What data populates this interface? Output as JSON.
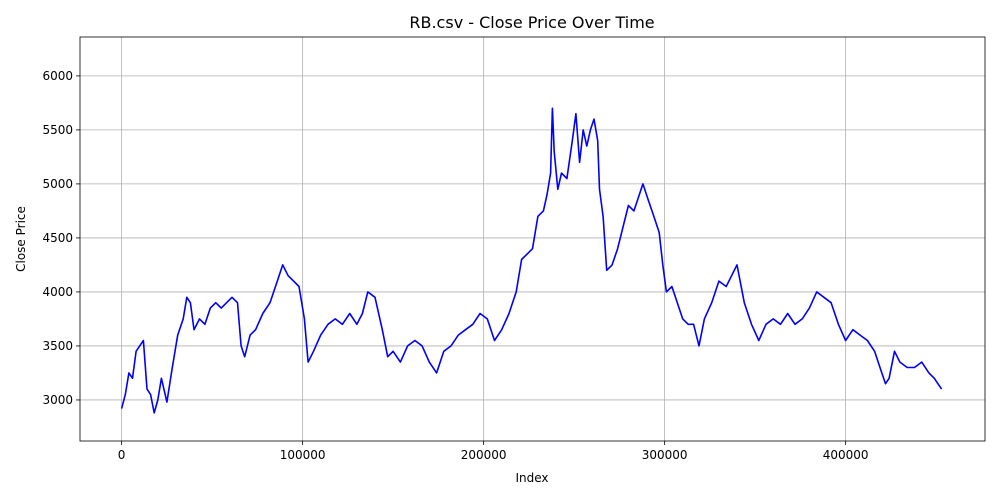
{
  "chart_data": {
    "type": "line",
    "title": "RB.csv - Close Price Over Time",
    "xlabel": "Index",
    "ylabel": "Close Price",
    "xlim": [
      -23000,
      477000
    ],
    "ylim": [
      2620,
      6360
    ],
    "xticks": [
      0,
      100000,
      200000,
      300000,
      400000
    ],
    "xtick_labels": [
      "0",
      "100000",
      "200000",
      "300000",
      "400000"
    ],
    "yticks": [
      3000,
      3500,
      4000,
      4500,
      5000,
      5500,
      6000
    ],
    "ytick_labels": [
      "3000",
      "3500",
      "4000",
      "4500",
      "5000",
      "5500",
      "6000"
    ],
    "grid": true,
    "series": [
      {
        "color": "#0000ff",
        "x": [
          0,
          2000,
          4000,
          6000,
          8000,
          10000,
          12000,
          14000,
          16000,
          18000,
          20000,
          22000,
          25000,
          28000,
          31000,
          34000,
          36000,
          38000,
          40000,
          43000,
          46000,
          49000,
          52000,
          55000,
          58000,
          61000,
          64000,
          66000,
          68000,
          71000,
          74000,
          78000,
          82000,
          86000,
          89000,
          92000,
          95000,
          98000,
          101000,
          103000,
          106000,
          110000,
          114000,
          118000,
          122000,
          126000,
          130000,
          133000,
          136000,
          140000,
          144000,
          147000,
          150000,
          154000,
          158000,
          162000,
          166000,
          170000,
          174000,
          178000,
          182000,
          186000,
          190000,
          194000,
          198000,
          202000,
          206000,
          210000,
          214000,
          218000,
          221000,
          224000,
          227000,
          230000,
          233000,
          235000,
          237000,
          238000,
          239000,
          241000,
          243000,
          246000,
          249000,
          251000,
          253000,
          255000,
          257000,
          259000,
          261000,
          263000,
          264000,
          266000,
          268000,
          271000,
          274000,
          277000,
          280000,
          283000,
          286000,
          288000,
          291000,
          294000,
          297000,
          299000,
          301000,
          304000,
          307000,
          310000,
          313000,
          316000,
          319000,
          322000,
          326000,
          330000,
          334000,
          337000,
          340000,
          344000,
          348000,
          352000,
          356000,
          360000,
          364000,
          368000,
          372000,
          376000,
          380000,
          384000,
          388000,
          392000,
          396000,
          400000,
          404000,
          408000,
          412000,
          416000,
          418000,
          420000,
          422000,
          424000,
          427000,
          430000,
          434000,
          438000,
          442000,
          446000,
          449000,
          451000,
          453000
        ],
        "y": [
          2920,
          3050,
          3250,
          3200,
          3450,
          3500,
          3550,
          3100,
          3050,
          2880,
          3000,
          3200,
          2980,
          3300,
          3600,
          3750,
          3950,
          3900,
          3650,
          3750,
          3700,
          3850,
          3900,
          3850,
          3900,
          3950,
          3900,
          3500,
          3400,
          3600,
          3650,
          3800,
          3900,
          4100,
          4250,
          4150,
          4100,
          4050,
          3750,
          3350,
          3450,
          3600,
          3700,
          3750,
          3700,
          3800,
          3700,
          3800,
          4000,
          3950,
          3650,
          3400,
          3450,
          3350,
          3500,
          3550,
          3500,
          3350,
          3250,
          3450,
          3500,
          3600,
          3650,
          3700,
          3800,
          3750,
          3550,
          3650,
          3800,
          4000,
          4300,
          4350,
          4400,
          4700,
          4750,
          4900,
          5100,
          5700,
          5300,
          4950,
          5100,
          5050,
          5400,
          5650,
          5200,
          5500,
          5350,
          5500,
          5600,
          5400,
          4950,
          4700,
          4200,
          4250,
          4400,
          4600,
          4800,
          4750,
          4900,
          5000,
          4850,
          4700,
          4550,
          4250,
          4000,
          4050,
          3900,
          3750,
          3700,
          3700,
          3500,
          3750,
          3900,
          4100,
          4050,
          4150,
          4250,
          3900,
          3700,
          3550,
          3700,
          3750,
          3700,
          3800,
          3700,
          3750,
          3850,
          4000,
          3950,
          3900,
          3700,
          3550,
          3650,
          3600,
          3550,
          3450,
          3350,
          3250,
          3150,
          3200,
          3450,
          3350,
          3300,
          3300,
          3350,
          3250,
          3200,
          3150,
          3100
        ]
      }
    ]
  }
}
